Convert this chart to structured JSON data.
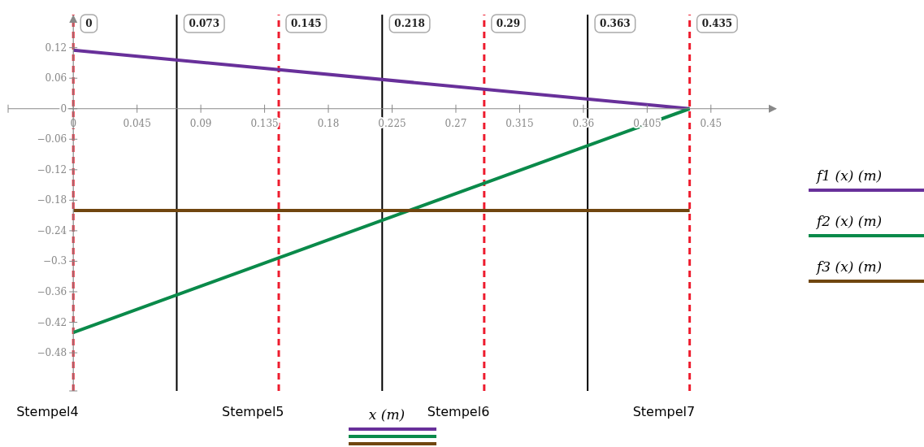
{
  "chart_data": {
    "type": "line",
    "xlabel": "x  (m)",
    "xlim": [
      -0.046,
      0.496
    ],
    "ylim": [
      -0.555,
      0.185
    ],
    "xticks": [
      0,
      0.045,
      0.09,
      0.135,
      0.18,
      0.225,
      0.27,
      0.315,
      0.36,
      0.405,
      0.45
    ],
    "yticks": [
      0.12,
      0.06,
      0,
      -0.06,
      -0.12,
      -0.18,
      -0.24,
      -0.3,
      -0.36,
      -0.42,
      -0.48
    ],
    "x": [
      0,
      0.435
    ],
    "grid": false,
    "legend": "right",
    "marker": "none",
    "line_style": "solid",
    "series": [
      {
        "name": "f1 (x)  (m)",
        "color": "#68309a",
        "values": [
          0.115,
          0
        ]
      },
      {
        "name": "f2 (x)  (m)",
        "color": "#0a8a4a",
        "values": [
          -0.44,
          0
        ]
      },
      {
        "name": "f3 (x)  (m)",
        "color": "#70460f",
        "values": [
          -0.2,
          -0.2
        ]
      }
    ],
    "ref_lines": [
      {
        "axis": "x",
        "value": 0,
        "label": "0",
        "color": "#ee1c2e",
        "line_style": "dashed"
      },
      {
        "axis": "x",
        "value": 0.073,
        "label": "0.073",
        "color": "#000000",
        "line_style": "solid"
      },
      {
        "axis": "x",
        "value": 0.145,
        "label": "0.145",
        "color": "#ee1c2e",
        "line_style": "dashed"
      },
      {
        "axis": "x",
        "value": 0.218,
        "label": "0.218",
        "color": "#000000",
        "line_style": "solid"
      },
      {
        "axis": "x",
        "value": 0.29,
        "label": "0.29",
        "color": "#ee1c2e",
        "line_style": "dashed"
      },
      {
        "axis": "x",
        "value": 0.363,
        "label": "0.363",
        "color": "#000000",
        "line_style": "solid"
      },
      {
        "axis": "x",
        "value": 0.435,
        "label": "0.435",
        "color": "#ee1c2e",
        "line_style": "dashed"
      }
    ],
    "annotations": [
      "Stempel4",
      "Stempel5",
      "Stempel6",
      "Stempel7"
    ]
  }
}
